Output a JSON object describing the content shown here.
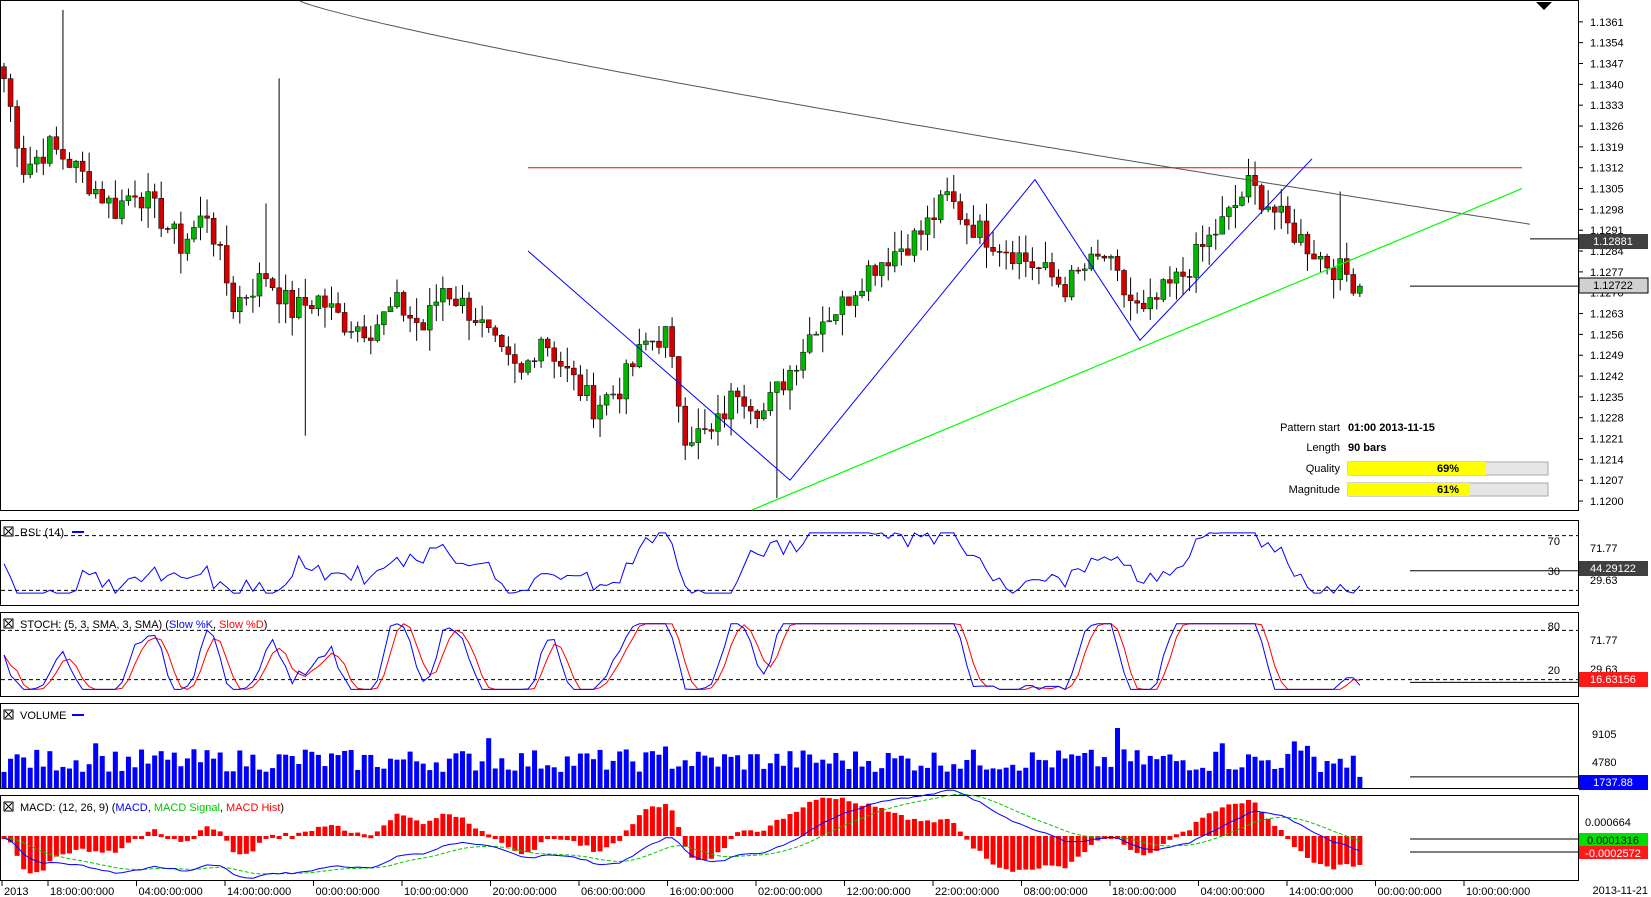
{
  "chart_data": {
    "type": "candlestick",
    "price_ticks": [
      "1.1361",
      "1.1354",
      "1.1347",
      "1.1340",
      "1.1333",
      "1.1326",
      "1.1319",
      "1.1312",
      "1.1305",
      "1.1298",
      "1.1291",
      "1.1284",
      "1.1277",
      "1.1270",
      "1.1263",
      "1.1256",
      "1.1249",
      "1.1242",
      "1.1235",
      "1.1228",
      "1.1221",
      "1.1214",
      "1.1207",
      "1.1200"
    ],
    "price_range": [
      1.1197,
      1.1368
    ],
    "marker_ma": "1.12881",
    "marker_last": "1.12722",
    "pattern_info": {
      "start_label": "Pattern start",
      "start_value": "01:00 2013-11-15",
      "length_label": "Length",
      "length_value": "90 bars",
      "quality_label": "Quality",
      "quality_value": "69%",
      "quality": 0.69,
      "magnitude_label": "Magnitude",
      "magnitude_value": "61%",
      "magnitude": 0.61
    },
    "resistance_level": 1.1312,
    "time_labels": [
      "2013",
      "18:00:00:000",
      "04:00:00:000",
      "14:00:00:000",
      "00:00:00:000",
      "10:00:00:000",
      "20:00:00:000",
      "06:00:00:000",
      "16:00:00:000",
      "02:00:00:000",
      "12:00:00:000",
      "22:00:00:000",
      "08:00:00:000",
      "18:00:00:000",
      "04:00:00:000",
      "14:00:00:000",
      "00:00:00:000",
      "10:00:00:000"
    ],
    "end_date": "2013-11-21",
    "rsi": {
      "title": "RSI: (14)",
      "level_high": "70",
      "level_low": "30",
      "tick_high": "71.77",
      "tick_low": "29.63",
      "value": "44.29122",
      "range": [
        20,
        80
      ]
    },
    "stoch": {
      "title_prefix": "STOCH: (5, 3, SMA, 3, SMA) (",
      "k_label": "Slow %K",
      "sep": ", ",
      "d_label": "Slow %D",
      "title_suffix": ")",
      "level_high": "80",
      "level_low": "20",
      "tick_high": "71.77",
      "tick_low": "29.63",
      "value": "16.63156"
    },
    "volume": {
      "title": "VOLUME",
      "tick_high": "9105",
      "tick_mid": "4780",
      "value": "1737.88",
      "max": 13000
    },
    "macd": {
      "title_prefix": "MACD: (12, 26, 9) (",
      "macd_label": "MACD",
      "sep1": ", ",
      "signal_label": "MACD Signal",
      "sep2": ", ",
      "hist_label": "MACD Hist",
      "title_suffix": ")",
      "tick_top": "0.000664",
      "value_signal": "0.0001316",
      "value_macd": "-0.0002572"
    },
    "colors": {
      "bull": "#00b400",
      "bear": "#d10000",
      "blue": "#0000ff",
      "red": "#ff0000",
      "green": "#00ff00",
      "ma": "#555555",
      "quality_bar": "#ffff00"
    }
  }
}
